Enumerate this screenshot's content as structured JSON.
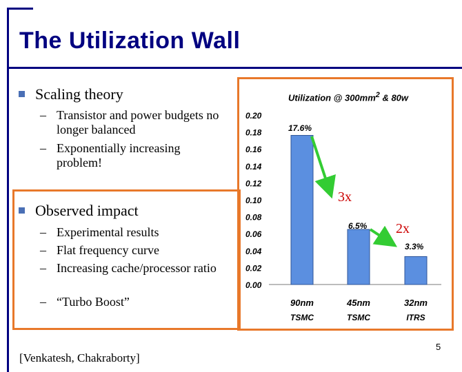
{
  "slide": {
    "title": "The Utilization Wall",
    "page_number": "5",
    "citation": "[Venkatesh, Chakraborty]"
  },
  "bullets": [
    {
      "text": "Scaling theory",
      "subs": [
        "Transistor and power budgets no longer balanced",
        "Exponentially increasing problem!"
      ]
    },
    {
      "text": "Observed impact",
      "subs": [
        "Experimental results",
        "Flat frequency curve",
        "Increasing cache/processor ratio",
        "“Turbo Boost”"
      ]
    }
  ],
  "sub_dash": "–",
  "colors": {
    "title": "#000080",
    "bullet_square": "#4a6fb5",
    "box_border": "#e8782a",
    "bar_fill": "#5b8fe0",
    "arrow": "#33cc33",
    "ratio_text": "#cc0000"
  },
  "chart_data": {
    "type": "bar",
    "title_main": "Utilization @ 300mm",
    "title_sup": "2",
    "title_tail": " & 80w",
    "categories": [
      {
        "line1": "90nm",
        "line2": "TSMC"
      },
      {
        "line1": "45nm",
        "line2": "TSMC"
      },
      {
        "line1": "32nm",
        "line2": "ITRS"
      }
    ],
    "values": [
      0.176,
      0.065,
      0.033
    ],
    "data_labels": [
      "17.6%",
      "6.5%",
      "3.3%"
    ],
    "ylim": [
      0,
      0.2
    ],
    "yticks": [
      "0.00",
      "0.02",
      "0.04",
      "0.06",
      "0.08",
      "0.10",
      "0.12",
      "0.14",
      "0.16",
      "0.18",
      "0.20"
    ],
    "annotations": [
      {
        "text": "3x",
        "from_bar": 0,
        "to_bar": 1
      },
      {
        "text": "2x",
        "from_bar": 1,
        "to_bar": 2
      }
    ]
  }
}
